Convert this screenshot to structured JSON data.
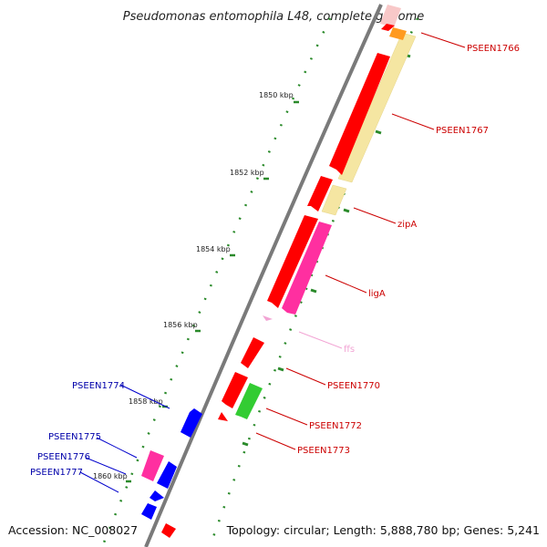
{
  "title": "Pseudomonas entomophila L48, complete genome",
  "footer": {
    "accession": "Accession: NC_008027",
    "info": "Topology: circular; Length: 5,888,780 bp; Genes: 5,241"
  },
  "colors": {
    "backbone": "#808080",
    "forward_cds": "#ff0000",
    "reverse_cds": "#0000ff",
    "rna": "#ff33a0",
    "rna_light": "#f5a7d7",
    "gc_skew": "#f7e7a6",
    "gc_label": "#008000",
    "fwd_label": "#cc0000",
    "rev_label": "#0000aa"
  },
  "ticks": [
    "1850 kbp",
    "1852 kbp",
    "1854 kbp",
    "1856 kbp",
    "1858 kbp",
    "1860 kbp"
  ],
  "forward_labels": [
    "PSEEN1766",
    "PSEEN1767",
    "zipA",
    "ligA",
    "ffs",
    "PSEEN1770",
    "PSEEN1772",
    "PSEEN1773"
  ],
  "reverse_labels": [
    "PSEEN1774",
    "PSEEN1775",
    "PSEEN1776",
    "PSEEN1777"
  ]
}
